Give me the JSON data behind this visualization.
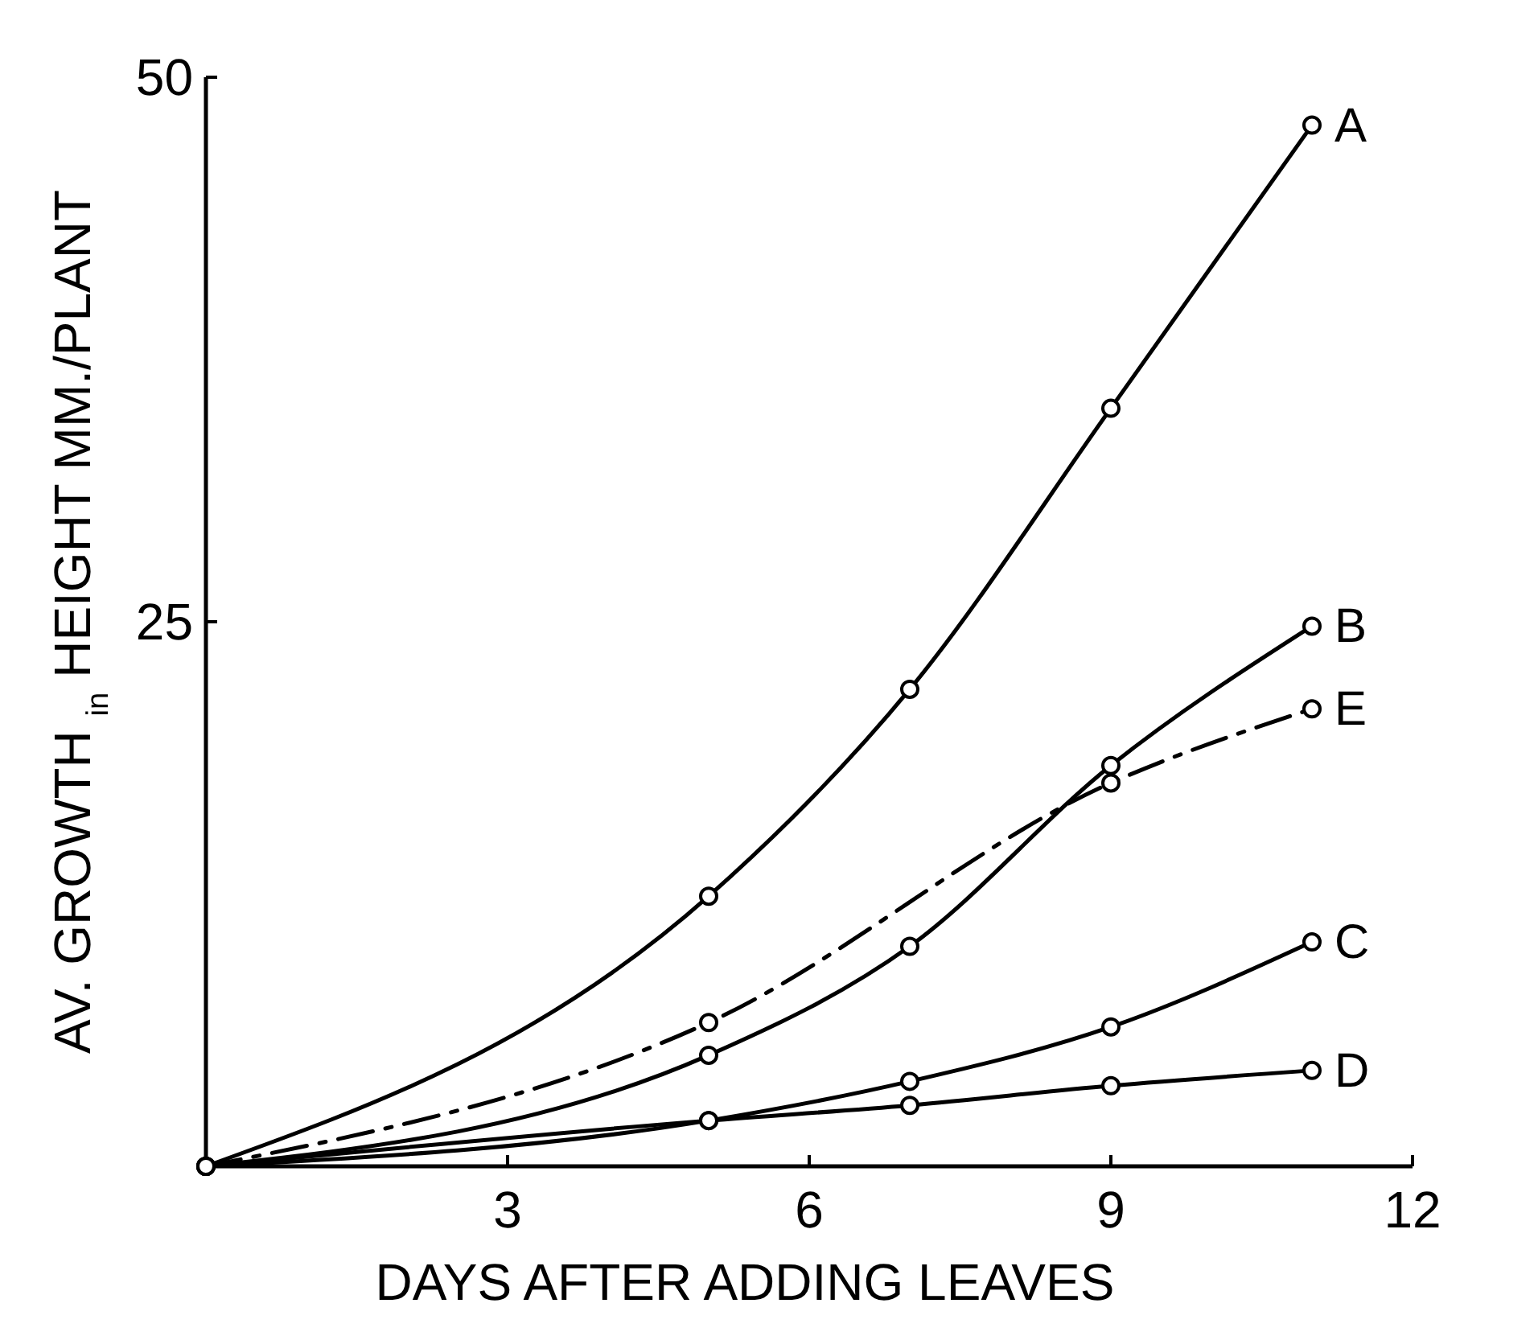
{
  "chart_data": {
    "type": "line",
    "xlabel": "DAYS AFTER ADDING LEAVES",
    "ylabel": "AV. GROWTH $_{in}$ HEIGHT MM./PLANT",
    "x": [
      0,
      5,
      7,
      9,
      11
    ],
    "xlim": [
      0,
      12
    ],
    "xticks": [
      3,
      6,
      9,
      12
    ],
    "ylim": [
      0,
      50
    ],
    "yticks": [
      25,
      50
    ],
    "grid": false,
    "marker": "circle",
    "series": [
      {
        "name": "A",
        "color": "#000000",
        "values": [
          0,
          12.4,
          21.9,
          34.8,
          47.8
        ]
      },
      {
        "name": "B",
        "color": "#000000",
        "values": [
          0,
          5.1,
          10.1,
          18.4,
          24.8
        ]
      },
      {
        "name": "E",
        "color": "#000000",
        "line_style": "dashed",
        "x": [
          0,
          5,
          9,
          11
        ],
        "values": [
          0,
          6.6,
          17.6,
          21.0
        ]
      },
      {
        "name": "C",
        "color": "#000000",
        "values": [
          0,
          2.1,
          3.9,
          6.4,
          10.3
        ]
      },
      {
        "name": "D",
        "color": "#000000",
        "values": [
          0,
          2.1,
          2.8,
          3.7,
          4.4
        ]
      }
    ]
  }
}
